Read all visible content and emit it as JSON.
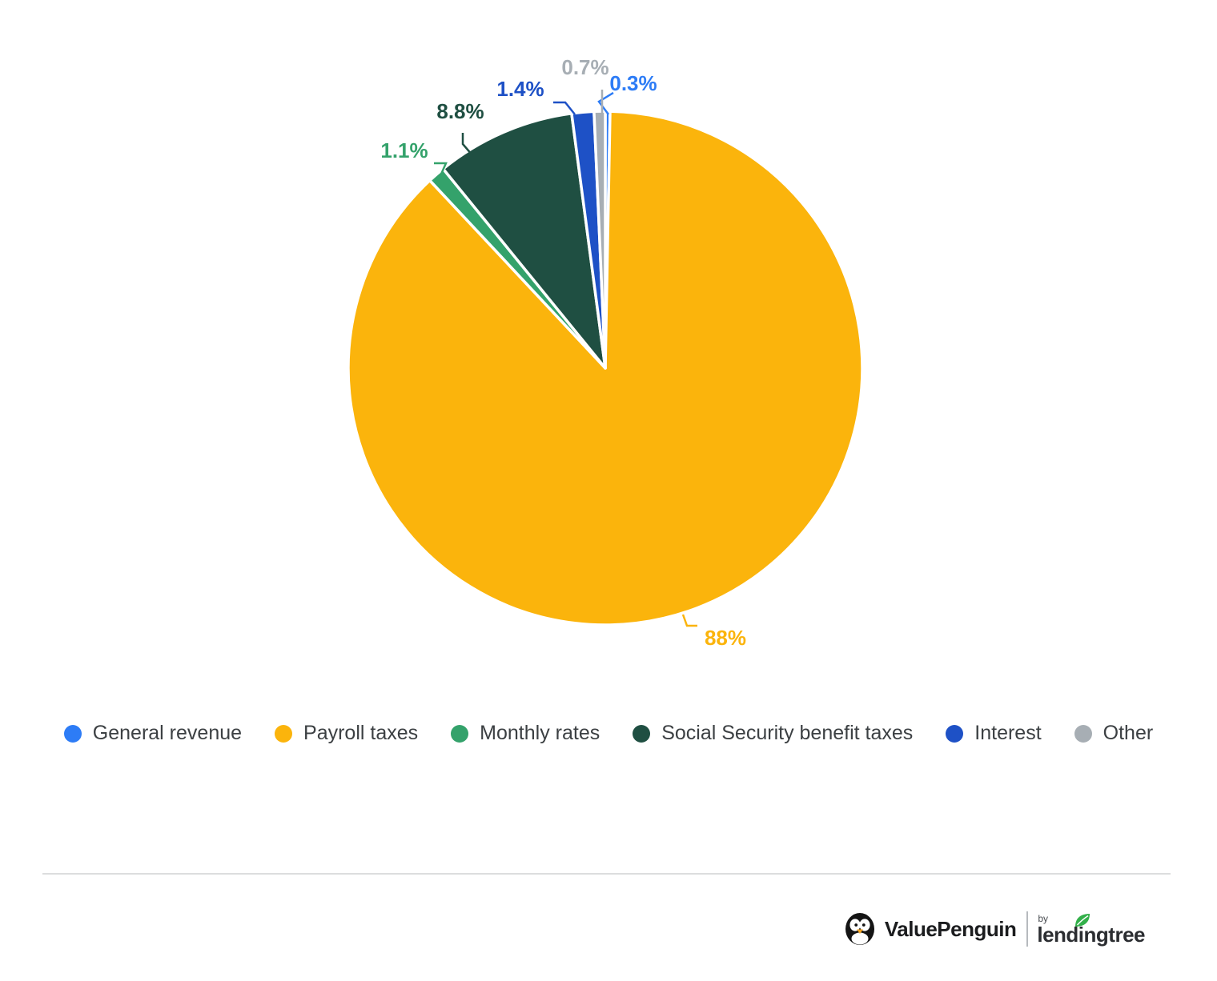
{
  "chart_data": {
    "type": "pie",
    "start_angle_deg": 0,
    "direction": "clockwise",
    "legend_position": "bottom",
    "slices": [
      {
        "label": "General revenue",
        "value": 0.3,
        "display": "0.3%",
        "color": "#2D7CF6"
      },
      {
        "label": "Payroll taxes",
        "value": 88,
        "display": "88%",
        "color": "#FBB40C"
      },
      {
        "label": "Monthly rates",
        "value": 1.1,
        "display": "1.1%",
        "color": "#34A26B"
      },
      {
        "label": "Social Security benefit taxes",
        "value": 8.8,
        "display": "8.8%",
        "color": "#1F4F42"
      },
      {
        "label": "Interest",
        "value": 1.4,
        "display": "1.4%",
        "color": "#1E51C6"
      },
      {
        "label": "Other",
        "value": 0.7,
        "display": "0.7%",
        "color": "#A7AEB4"
      }
    ]
  },
  "footer": {
    "brand": "ValuePenguin",
    "by": "by",
    "partner": "lendingtree"
  }
}
